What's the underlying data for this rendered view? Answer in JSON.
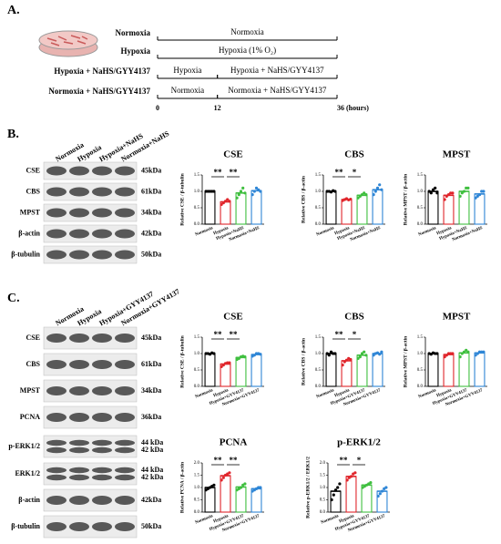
{
  "panel_a": {
    "label": "A.",
    "time_range": [
      0,
      36
    ],
    "time_ticks": [
      0,
      12,
      {
        "value": 36,
        "label": "36 (hours)"
      }
    ],
    "rows": [
      {
        "label": "Normoxia",
        "segments": [
          {
            "text": "Normoxia",
            "start": 0,
            "end": 36
          }
        ]
      },
      {
        "label": "Hypoxia",
        "segments": [
          {
            "text": "Hypoxia (1% O₂)",
            "start": 0,
            "end": 36
          }
        ]
      },
      {
        "label": "Hypoxia + NaHS/GYY4137",
        "segments": [
          {
            "text": "Hypoxia",
            "start": 0,
            "end": 12
          },
          {
            "text": "Hypoxia + NaHS/GYY4137",
            "start": 12,
            "end": 36
          }
        ]
      },
      {
        "label": "Normoxia + NaHS/GYY4137",
        "segments": [
          {
            "text": "Normoxia",
            "start": 0,
            "end": 12
          },
          {
            "text": "Normoxia + NaHS/GYY4137",
            "start": 12,
            "end": 36
          }
        ]
      }
    ]
  },
  "panel_b": {
    "label": "B.",
    "lanes": [
      "Normoxia",
      "Hypoxia",
      "Hypoxia+NaHS",
      "Normoxia+NaHS"
    ],
    "rows": [
      {
        "name": "CSE",
        "kda": [
          "45kDa"
        ]
      },
      {
        "name": "CBS",
        "kda": [
          "61kDa"
        ]
      },
      {
        "name": "MPST",
        "kda": [
          "34kDa"
        ]
      },
      {
        "name": "β-actin",
        "kda": [
          "42kDa"
        ]
      },
      {
        "name": "β-tubulin",
        "kda": [
          "50kDa"
        ]
      }
    ]
  },
  "panel_c": {
    "label": "C.",
    "lanes": [
      "Normoxia",
      "Hypoxia",
      "Hypoxia+GYY4137",
      "Normoxia+GYY4137"
    ],
    "rows": [
      {
        "name": "CSE",
        "kda": [
          "45kDa"
        ]
      },
      {
        "name": "CBS",
        "kda": [
          "61kDa"
        ]
      },
      {
        "name": "MPST",
        "kda": [
          "34kDa"
        ]
      },
      {
        "name": "PCNA",
        "kda": [
          "36kDa"
        ]
      },
      {
        "name": "p-ERK1/2",
        "kda": [
          "44 kDa",
          "42 kDa"
        ]
      },
      {
        "name": "ERK1/2",
        "kda": [
          "44 kDa",
          "42 kDa"
        ]
      },
      {
        "name": "β-actin",
        "kda": [
          "42kDa"
        ]
      },
      {
        "name": "β-tubulin",
        "kda": [
          "50kDa"
        ]
      }
    ]
  },
  "chart_data": [
    {
      "type": "bar",
      "title": "CSE",
      "y_label": "Relative CSE / β-tubulin",
      "categories": [
        "Normoxia",
        "Hypoxia",
        "Hypoxia+NaHS",
        "Normoxia+NaHS"
      ],
      "colors": [
        "#000000",
        "#e0252b",
        "#3fbf3f",
        "#2f86d6"
      ],
      "values": [
        1.0,
        0.68,
        0.95,
        1.02
      ],
      "points": [
        [
          1.0,
          1.0,
          1.0,
          1.0,
          1.0
        ],
        [
          0.6,
          0.65,
          0.7,
          0.75,
          0.7
        ],
        [
          0.8,
          0.9,
          1.0,
          1.1,
          0.95
        ],
        [
          0.9,
          1.0,
          1.1,
          1.05,
          1.0
        ]
      ],
      "ylim": [
        0,
        1.5
      ],
      "yticks": [
        {
          "value": 0,
          "label": "0.0"
        },
        0.5,
        {
          "value": 1,
          "label": "1.0"
        },
        1.5
      ],
      "annotations": [
        {
          "text": "**",
          "between": [
            "Normoxia",
            "Hypoxia"
          ]
        },
        {
          "text": "**",
          "between": [
            "Hypoxia",
            "Hypoxia+NaHS"
          ]
        }
      ]
    },
    {
      "type": "bar",
      "title": "CBS",
      "y_label": "Relative CBS / β-actin",
      "categories": [
        "Normoxia",
        "Hypoxia",
        "Hypoxia+NaHS",
        "Normoxia+NaHS"
      ],
      "colors": [
        "#000000",
        "#e0252b",
        "#3fbf3f",
        "#2f86d6"
      ],
      "values": [
        1.0,
        0.75,
        0.88,
        1.05
      ],
      "points": [
        [
          1.0,
          1.0,
          0.98,
          1.02,
          1.0
        ],
        [
          0.72,
          0.75,
          0.78,
          0.74,
          0.76
        ],
        [
          0.8,
          0.85,
          0.9,
          0.95,
          0.9
        ],
        [
          0.9,
          1.0,
          1.1,
          1.2,
          1.05
        ]
      ],
      "ylim": [
        0,
        1.5
      ],
      "yticks": [
        {
          "value": 0,
          "label": "0.0"
        },
        0.5,
        {
          "value": 1,
          "label": "1.0"
        },
        1.5
      ],
      "annotations": [
        {
          "text": "**",
          "between": [
            "Normoxia",
            "Hypoxia"
          ]
        },
        {
          "text": "*",
          "between": [
            "Hypoxia",
            "Hypoxia+NaHS"
          ]
        }
      ]
    },
    {
      "type": "bar",
      "title": "MPST",
      "y_label": "Relative MPST / β-actin",
      "categories": [
        "Normoxia",
        "Hypoxia",
        "Hypoxia+NaHS",
        "Normoxia+NaHS"
      ],
      "colors": [
        "#000000",
        "#e0252b",
        "#3fbf3f",
        "#2f86d6"
      ],
      "values": [
        1.0,
        0.88,
        1.0,
        0.92
      ],
      "points": [
        [
          1.0,
          0.95,
          1.05,
          1.1,
          0.95
        ],
        [
          0.75,
          0.85,
          0.9,
          0.95,
          0.95
        ],
        [
          0.85,
          0.95,
          1.0,
          1.1,
          1.1
        ],
        [
          0.8,
          0.85,
          0.9,
          1.0,
          1.0
        ]
      ],
      "ylim": [
        0,
        1.5
      ],
      "yticks": [
        {
          "value": 0,
          "label": "0.0"
        },
        0.5,
        {
          "value": 1,
          "label": "1.0"
        },
        1.5
      ],
      "annotations": []
    },
    {
      "type": "bar",
      "title": "CSE",
      "y_label": "Relative CSE / β-tubulin",
      "categories": [
        "Normoxia",
        "Hypoxia",
        "Hypoxia+GYY4137",
        "Normoxia+GYY4137"
      ],
      "colors": [
        "#000000",
        "#e0252b",
        "#3fbf3f",
        "#2f86d6"
      ],
      "values": [
        1.0,
        0.68,
        0.88,
        0.97
      ],
      "points": [
        [
          1.0,
          1.0,
          0.98,
          1.02,
          1.0
        ],
        [
          0.6,
          0.65,
          0.7,
          0.72,
          0.72
        ],
        [
          0.82,
          0.85,
          0.9,
          0.92,
          0.9
        ],
        [
          0.92,
          0.95,
          1.0,
          1.0,
          0.98
        ]
      ],
      "ylim": [
        0,
        1.5
      ],
      "yticks": [
        {
          "value": 0,
          "label": "0.0"
        },
        0.5,
        {
          "value": 1,
          "label": "1.0"
        },
        1.5
      ],
      "annotations": [
        {
          "text": "**",
          "between": [
            "Normoxia",
            "Hypoxia"
          ]
        },
        {
          "text": "**",
          "between": [
            "Hypoxia",
            "Hypoxia+GYY4137"
          ]
        }
      ]
    },
    {
      "type": "bar",
      "title": "CBS",
      "y_label": "Relative CBS / β-actin",
      "categories": [
        "Normoxia",
        "Hypoxia",
        "Hypoxia+GYY4137",
        "Normoxia+GYY4137"
      ],
      "colors": [
        "#000000",
        "#e0252b",
        "#3fbf3f",
        "#2f86d6"
      ],
      "values": [
        1.0,
        0.78,
        0.95,
        1.0
      ],
      "points": [
        [
          1.0,
          0.95,
          1.05,
          1.0,
          1.0
        ],
        [
          0.65,
          0.75,
          0.8,
          0.85,
          0.82
        ],
        [
          0.85,
          0.9,
          1.0,
          1.05,
          0.95
        ],
        [
          0.95,
          1.0,
          1.02,
          0.98,
          1.05
        ]
      ],
      "ylim": [
        0,
        1.5
      ],
      "yticks": [
        {
          "value": 0,
          "label": "0.0"
        },
        0.5,
        {
          "value": 1,
          "label": "1.0"
        },
        1.5
      ],
      "annotations": [
        {
          "text": "**",
          "between": [
            "Normoxia",
            "Hypoxia"
          ]
        },
        {
          "text": "*",
          "between": [
            "Hypoxia",
            "Hypoxia+GYY4137"
          ]
        }
      ]
    },
    {
      "type": "bar",
      "title": "MPST",
      "y_label": "Relative MPST / β-actin",
      "categories": [
        "Normoxia",
        "Hypoxia",
        "Hypoxia+GYY4137",
        "Normoxia+GYY4137"
      ],
      "colors": [
        "#000000",
        "#e0252b",
        "#3fbf3f",
        "#2f86d6"
      ],
      "values": [
        1.0,
        0.97,
        1.02,
        1.02
      ],
      "points": [
        [
          1.0,
          0.98,
          1.02,
          1.0,
          1.0
        ],
        [
          0.9,
          0.95,
          1.0,
          1.0,
          1.0
        ],
        [
          0.9,
          1.0,
          1.05,
          1.1,
          1.05
        ],
        [
          0.95,
          1.0,
          1.05,
          1.05,
          1.05
        ]
      ],
      "ylim": [
        0,
        1.5
      ],
      "yticks": [
        {
          "value": 0,
          "label": "0.0"
        },
        0.5,
        {
          "value": 1,
          "label": "1.0"
        },
        1.5
      ],
      "annotations": []
    },
    {
      "type": "bar",
      "title": "PCNA",
      "y_label": "Relative PCNA / β-actin",
      "categories": [
        "Normoxia",
        "Hypoxia",
        "Hypoxia+GYY4137",
        "Normoxia+GYY4137"
      ],
      "colors": [
        "#000000",
        "#e0252b",
        "#3fbf3f",
        "#2f86d6"
      ],
      "values": [
        1.0,
        1.48,
        1.02,
        0.95
      ],
      "points": [
        [
          0.9,
          0.95,
          1.0,
          1.05,
          1.1
        ],
        [
          1.3,
          1.4,
          1.5,
          1.55,
          1.6
        ],
        [
          0.9,
          0.95,
          1.0,
          1.1,
          1.15
        ],
        [
          0.85,
          0.9,
          0.95,
          1.0,
          1.0
        ]
      ],
      "ylim": [
        0,
        2
      ],
      "yticks": [
        {
          "value": 0,
          "label": "0.0"
        },
        0.5,
        {
          "value": 1,
          "label": "1.0"
        },
        1.5,
        {
          "value": 2,
          "label": "2.0"
        }
      ],
      "annotations": [
        {
          "text": "**",
          "between": [
            "Normoxia",
            "Hypoxia"
          ]
        },
        {
          "text": "**",
          "between": [
            "Hypoxia",
            "Hypoxia+GYY4137"
          ]
        }
      ]
    },
    {
      "type": "bar",
      "title": "p-ERK1/2",
      "y_label": "Relative p-ERK1/2 / ERK1/2",
      "categories": [
        "Normoxia",
        "Hypoxia",
        "Hypoxia+GYY4137",
        "Normoxia+GYY4137"
      ],
      "colors": [
        "#000000",
        "#e0252b",
        "#3fbf3f",
        "#2f86d6"
      ],
      "values": [
        0.85,
        1.45,
        1.1,
        0.85
      ],
      "points": [
        [
          0.5,
          0.7,
          0.9,
          1.0,
          1.15
        ],
        [
          1.3,
          1.4,
          1.45,
          1.55,
          1.6
        ],
        [
          1.0,
          1.05,
          1.1,
          1.15,
          1.2
        ],
        [
          0.65,
          0.75,
          0.85,
          0.95,
          1.0
        ]
      ],
      "ylim": [
        0,
        2
      ],
      "yticks": [
        {
          "value": 0,
          "label": "0.0"
        },
        0.5,
        {
          "value": 1,
          "label": "1.0"
        },
        1.5,
        {
          "value": 2,
          "label": "2.0"
        }
      ],
      "annotations": [
        {
          "text": "**",
          "between": [
            "Normoxia",
            "Hypoxia"
          ]
        },
        {
          "text": "*",
          "between": [
            "Hypoxia",
            "Hypoxia+GYY4137"
          ]
        }
      ]
    }
  ]
}
